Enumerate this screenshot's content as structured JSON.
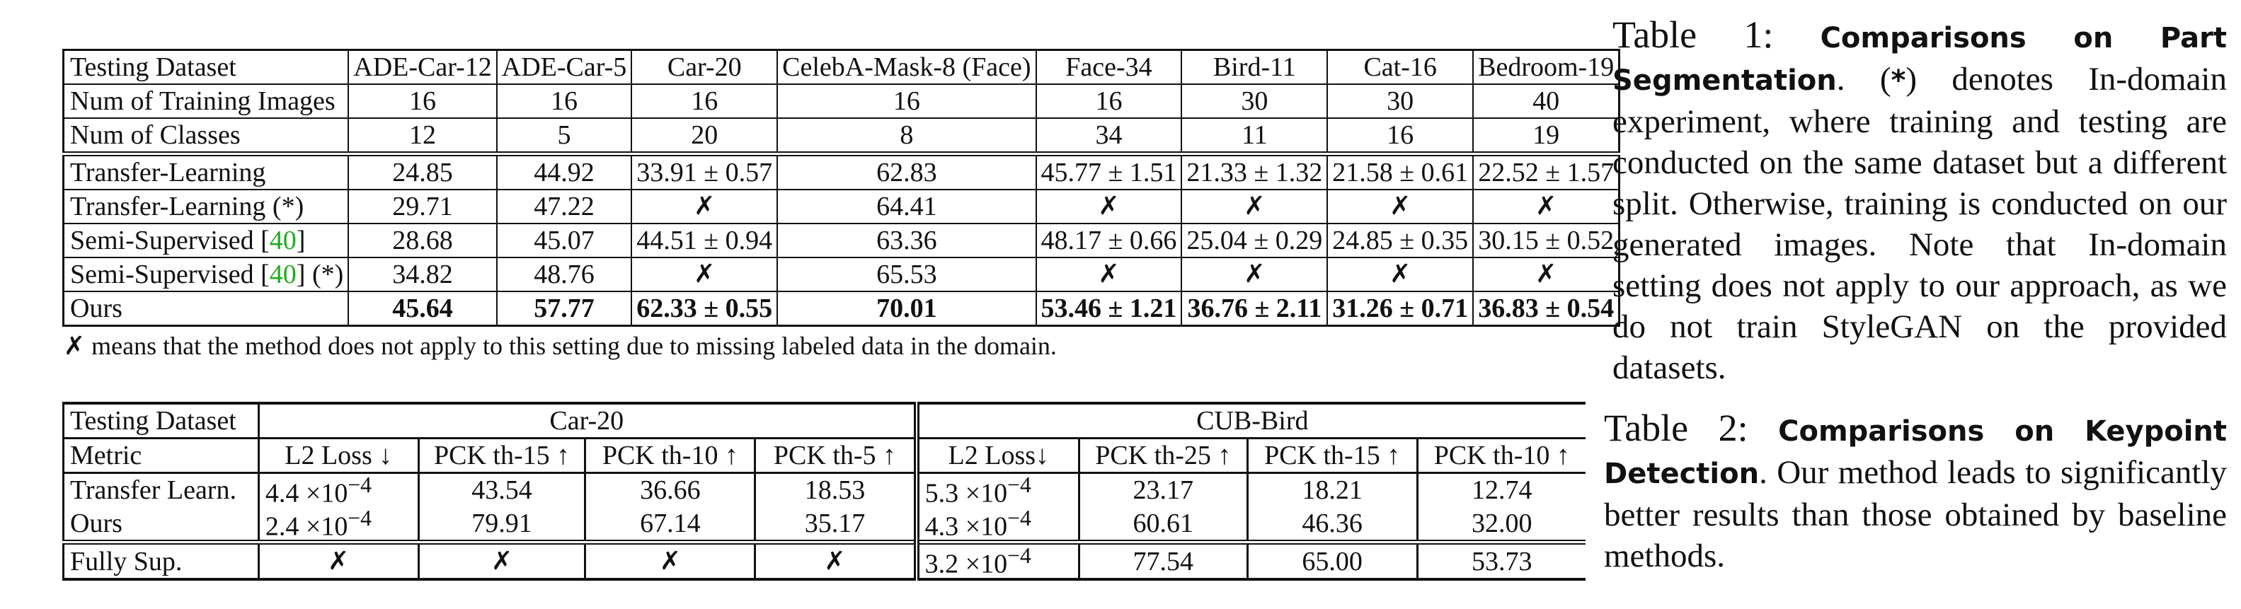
{
  "table1": {
    "header_rows": [
      {
        "label": "Testing Dataset",
        "cells": [
          "ADE-Car-12",
          "ADE-Car-5",
          "Car-20",
          "CelebA-Mask-8 (Face)",
          "Face-34",
          "Bird-11",
          "Cat-16",
          "Bedroom-19"
        ]
      },
      {
        "label": "Num of Training Images",
        "cells": [
          "16",
          "16",
          "16",
          "16",
          "16",
          "30",
          "30",
          "40"
        ]
      },
      {
        "label": "Num of Classes",
        "cells": [
          "12",
          "5",
          "20",
          "8",
          "34",
          "11",
          "16",
          "19"
        ]
      }
    ],
    "method_rows": [
      {
        "label": "Transfer-Learning",
        "cells": [
          "24.85",
          "44.92",
          "33.91 ± 0.57",
          "62.83",
          "45.77 ± 1.51",
          "21.33 ± 1.32",
          "21.58 ± 0.61",
          "22.52 ± 1.57"
        ]
      },
      {
        "label": "Transfer-Learning (*)",
        "cells": [
          "29.71",
          "47.22",
          "✗",
          "64.41",
          "✗",
          "✗",
          "✗",
          "✗"
        ]
      },
      {
        "label_pre": "Semi-Supervised [",
        "label_cite": "40",
        "label_post": "]",
        "cells": [
          "28.68",
          "45.07",
          "44.51 ± 0.94",
          "63.36",
          "48.17 ± 0.66",
          "25.04 ± 0.29",
          "24.85 ± 0.35",
          "30.15 ± 0.52"
        ]
      },
      {
        "label_pre": "Semi-Supervised [",
        "label_cite": "40",
        "label_post": "] (*)",
        "cells": [
          "34.82",
          "48.76",
          "✗",
          "65.53",
          "✗",
          "✗",
          "✗",
          "✗"
        ]
      },
      {
        "label": "Ours",
        "cells": [
          "45.64",
          "57.77",
          "62.33 ± 0.55",
          "70.01",
          "53.46 ± 1.21",
          "36.76 ± 2.11",
          "31.26 ± 0.71",
          "36.83 ± 0.54"
        ]
      }
    ],
    "footnote_mark": "✗",
    "footnote": " means that the method does not apply to this setting due to missing labeled data in the domain."
  },
  "table2": {
    "col0_header": "Testing Dataset",
    "group_car": "Car-20",
    "group_bird": "CUB-Bird",
    "metric_label": "Metric",
    "metrics": [
      "L2 Loss ↓",
      "PCK th-15 ↑",
      "PCK th-10 ↑",
      "PCK th-5 ↑",
      "L2 Loss↓",
      "PCK th-25 ↑",
      "PCK th-15 ↑",
      "PCK th-10 ↑"
    ],
    "rows": [
      {
        "label": "Transfer Learn.",
        "l2a_base": "4.4 ×10",
        "l2a_exp": "−4",
        "c1": "43.54",
        "c2": "36.66",
        "c3": "18.53",
        "l2b_base": "5.3 ×10",
        "l2b_exp": "−4",
        "b1": "23.17",
        "b2": "18.21",
        "b3": "12.74"
      },
      {
        "label": "Ours",
        "l2a_base": "2.4 ×10",
        "l2a_exp": "−4",
        "c1": "79.91",
        "c2": "67.14",
        "c3": "35.17",
        "l2b_base": "4.3 ×10",
        "l2b_exp": "−4",
        "b1": "60.61",
        "b2": "46.36",
        "b3": "32.00"
      },
      {
        "label": "Fully Sup.",
        "l2a_mark": "✗",
        "c1": "✗",
        "c2": "✗",
        "c3": "✗",
        "l2b_base": "3.2 ×10",
        "l2b_exp": "−4",
        "b1": "77.54",
        "b2": "65.00",
        "b3": "53.73"
      }
    ]
  },
  "caption1": {
    "label": "Table 1: ",
    "bold": "Comparisons on Part Segmentation",
    "after_bold": ". (",
    "star": "*",
    "text": ") denotes In-domain experiment, where training and testing are conducted on the same dataset but a different split. Otherwise, training is conducted on our generated images. Note that In-domain setting does not apply to our approach, as we do not train StyleGAN on the provided datasets."
  },
  "caption2": {
    "label": "Table 2: ",
    "bold": "Comparisons on Keypoint Detection",
    "text": ". Our method leads to significantly better results than those obtained by baseline methods."
  }
}
